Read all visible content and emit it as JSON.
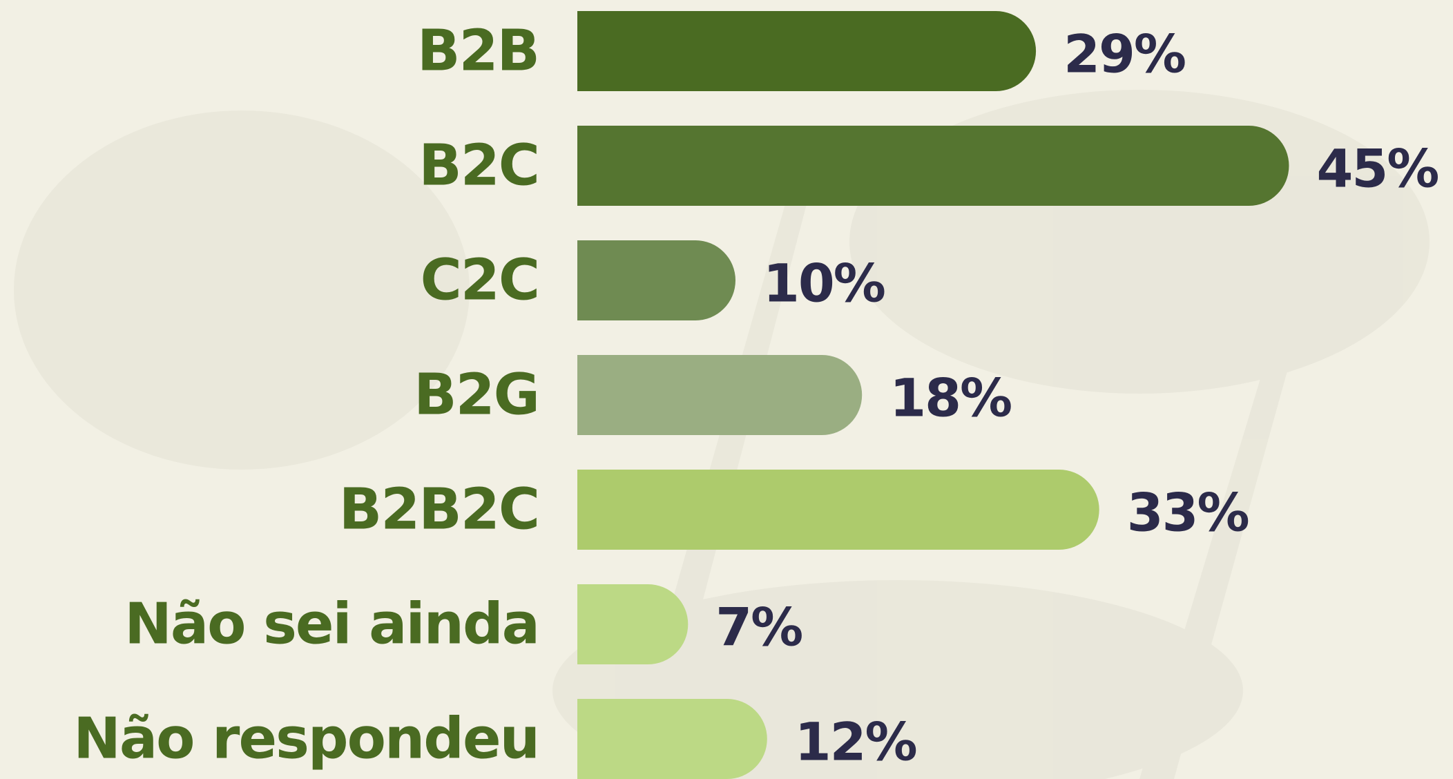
{
  "chart_data": {
    "type": "bar",
    "orientation": "horizontal",
    "categories": [
      "B2B",
      "B2C",
      "C2C",
      "B2G",
      "B2B2C",
      "Não sei ainda",
      "Não respondeu"
    ],
    "values": [
      29,
      45,
      10,
      18,
      33,
      7,
      12
    ],
    "value_labels": [
      "29%",
      "45%",
      "10%",
      "18%",
      "33%",
      "7%",
      "12%"
    ],
    "colors": [
      "#4a6b22",
      "#557530",
      "#6f8b52",
      "#9aae82",
      "#adcb6c",
      "#bcd985",
      "#bcd985"
    ]
  }
}
